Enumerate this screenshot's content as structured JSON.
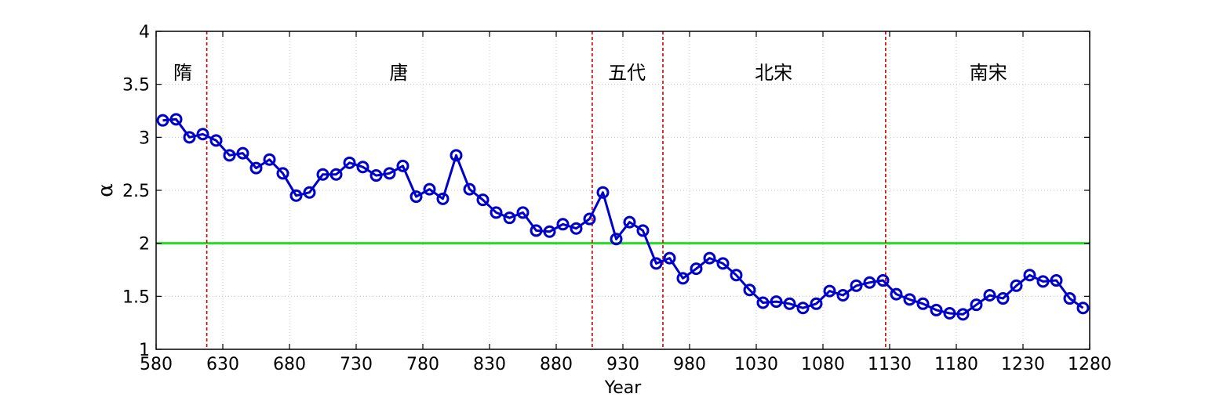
{
  "chart_data": {
    "type": "line",
    "xlabel": "Year",
    "ylabel": "α",
    "xlim": [
      580,
      1280
    ],
    "ylim": [
      1,
      4
    ],
    "xticks": [
      580,
      630,
      680,
      730,
      780,
      830,
      880,
      930,
      980,
      1030,
      1080,
      1130,
      1180,
      1230,
      1280
    ],
    "yticks": [
      "1",
      "1.5",
      "2",
      "2.5",
      "3",
      "3.5",
      "4"
    ],
    "grid": true,
    "series": [
      {
        "color": "#0000cc",
        "marker": "circle",
        "points": [
          [
            585,
            3.16
          ],
          [
            595,
            3.17
          ],
          [
            605,
            3.0
          ],
          [
            615,
            3.03
          ],
          [
            625,
            2.97
          ],
          [
            635,
            2.83
          ],
          [
            645,
            2.85
          ],
          [
            655,
            2.71
          ],
          [
            665,
            2.79
          ],
          [
            675,
            2.66
          ],
          [
            685,
            2.45
          ],
          [
            695,
            2.48
          ],
          [
            705,
            2.65
          ],
          [
            715,
            2.65
          ],
          [
            725,
            2.76
          ],
          [
            735,
            2.72
          ],
          [
            745,
            2.64
          ],
          [
            755,
            2.66
          ],
          [
            765,
            2.73
          ],
          [
            775,
            2.44
          ],
          [
            785,
            2.51
          ],
          [
            795,
            2.42
          ],
          [
            805,
            2.83
          ],
          [
            815,
            2.51
          ],
          [
            825,
            2.41
          ],
          [
            835,
            2.29
          ],
          [
            845,
            2.24
          ],
          [
            855,
            2.29
          ],
          [
            865,
            2.12
          ],
          [
            875,
            2.11
          ],
          [
            885,
            2.18
          ],
          [
            895,
            2.14
          ],
          [
            905,
            2.23
          ],
          [
            915,
            2.48
          ],
          [
            925,
            2.04
          ],
          [
            935,
            2.2
          ],
          [
            945,
            2.12
          ],
          [
            955,
            1.81
          ],
          [
            965,
            1.86
          ],
          [
            975,
            1.67
          ],
          [
            985,
            1.76
          ],
          [
            995,
            1.86
          ],
          [
            1005,
            1.81
          ],
          [
            1015,
            1.7
          ],
          [
            1025,
            1.56
          ],
          [
            1035,
            1.44
          ],
          [
            1045,
            1.45
          ],
          [
            1055,
            1.43
          ],
          [
            1065,
            1.39
          ],
          [
            1075,
            1.43
          ],
          [
            1085,
            1.55
          ],
          [
            1095,
            1.51
          ],
          [
            1105,
            1.6
          ],
          [
            1115,
            1.63
          ],
          [
            1125,
            1.65
          ],
          [
            1135,
            1.52
          ],
          [
            1145,
            1.47
          ],
          [
            1155,
            1.43
          ],
          [
            1165,
            1.37
          ],
          [
            1175,
            1.34
          ],
          [
            1185,
            1.33
          ],
          [
            1195,
            1.42
          ],
          [
            1205,
            1.51
          ],
          [
            1215,
            1.48
          ],
          [
            1225,
            1.6
          ],
          [
            1235,
            1.7
          ],
          [
            1245,
            1.64
          ],
          [
            1255,
            1.65
          ],
          [
            1265,
            1.48
          ],
          [
            1275,
            1.39
          ]
        ]
      }
    ],
    "reference_line": {
      "y": 2,
      "color": "#22dd22"
    },
    "dynasty_boundaries": [
      618,
      907,
      960,
      1127
    ],
    "boundary_color": "#cc0000",
    "dynasties": [
      {
        "label": "隋",
        "x": 600
      },
      {
        "label": "唐",
        "x": 762
      },
      {
        "label": "五代",
        "x": 933
      },
      {
        "label": "北宋",
        "x": 1043
      },
      {
        "label": "南宋",
        "x": 1204
      }
    ]
  }
}
